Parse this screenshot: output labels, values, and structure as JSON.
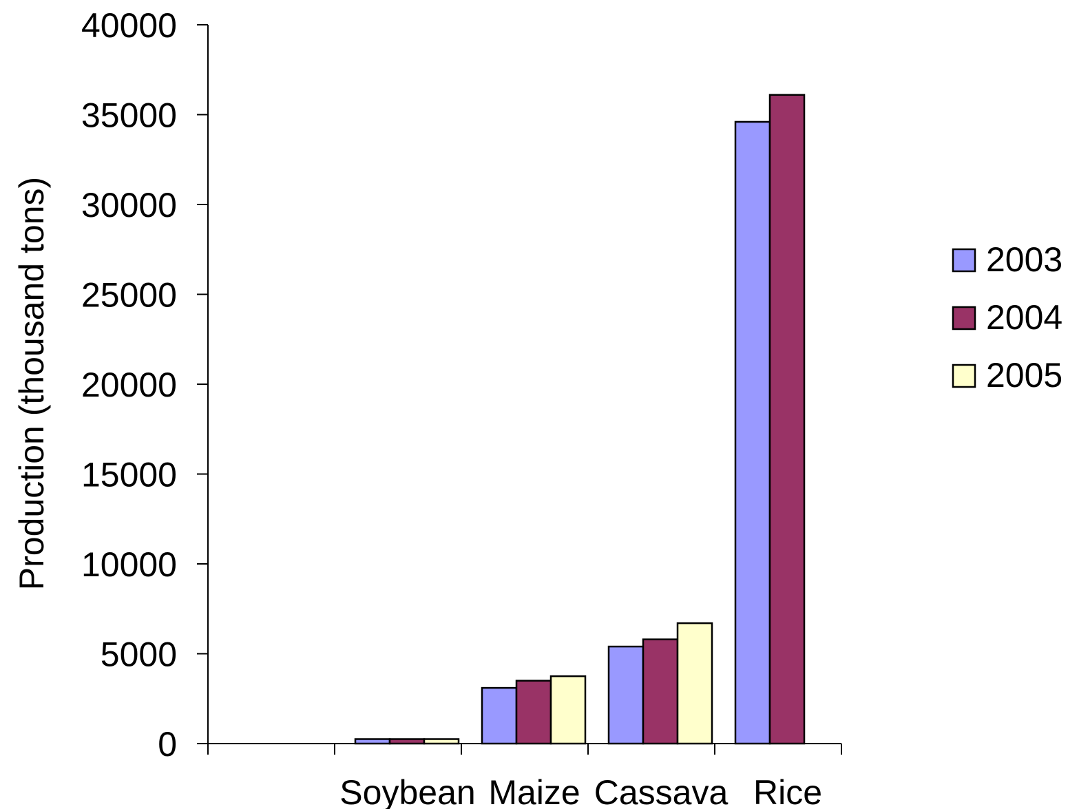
{
  "chart_data": {
    "type": "bar",
    "title": "",
    "xlabel": "",
    "ylabel": "Production (thousand tons)",
    "ylim": [
      0,
      40000
    ],
    "y_ticks": [
      0,
      5000,
      10000,
      15000,
      20000,
      25000,
      30000,
      35000,
      40000
    ],
    "categories": [
      "",
      "Soybean",
      "Maize",
      "Cassava",
      "Rice"
    ],
    "series": [
      {
        "name": "2003",
        "color": "#9999ff",
        "values": [
          null,
          250,
          3100,
          5400,
          34600
        ]
      },
      {
        "name": "2004",
        "color": "#993366",
        "values": [
          null,
          250,
          3500,
          5800,
          36100
        ]
      },
      {
        "name": "2005",
        "color": "#ffffcc",
        "values": [
          null,
          250,
          3750,
          6700,
          null
        ]
      }
    ],
    "grid": false,
    "legend_position": "right"
  }
}
